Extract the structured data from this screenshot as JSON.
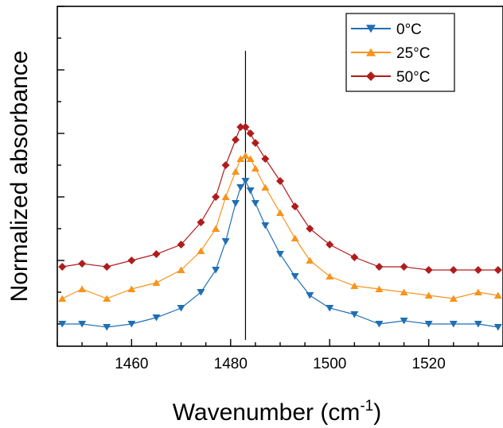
{
  "chart_data": {
    "type": "line",
    "xlabel_main": "Wavenumber (cm",
    "xlabel_sup": "-1",
    "xlabel_end": ")",
    "ylabel": "Normalized absorbance",
    "xlim": [
      1445,
      1535
    ],
    "ylim": [
      -0.07,
      1.0
    ],
    "x_ticks": [
      1460,
      1480,
      1500,
      1520
    ],
    "y_ticks_major": [
      0,
      0.2,
      0.4,
      0.6,
      0.8,
      1.0
    ],
    "grid": false,
    "legend_position": "top-right",
    "reference_line": {
      "x": 1483,
      "y_range": [
        -0.05,
        0.86
      ]
    },
    "series": [
      {
        "name": "0°C",
        "color": "#1f6fb4",
        "marker": "triangle-down",
        "x": [
          1446,
          1450,
          1455,
          1460,
          1465,
          1470,
          1474,
          1477,
          1479,
          1481,
          1482,
          1483,
          1484,
          1485,
          1487,
          1490,
          1493,
          1496,
          1500,
          1505,
          1510,
          1515,
          1520,
          1525,
          1530,
          1534
        ],
        "y": [
          0.0,
          0.0,
          -0.01,
          0.0,
          0.02,
          0.05,
          0.1,
          0.17,
          0.26,
          0.38,
          0.43,
          0.45,
          0.42,
          0.38,
          0.31,
          0.22,
          0.15,
          0.09,
          0.05,
          0.03,
          0.0,
          0.01,
          0.0,
          0.0,
          0.0,
          -0.01
        ]
      },
      {
        "name": "25°C",
        "color": "#f7941d",
        "marker": "triangle-up",
        "x": [
          1446,
          1450,
          1455,
          1460,
          1465,
          1470,
          1474,
          1477,
          1479,
          1481,
          1482,
          1483,
          1484,
          1485,
          1487,
          1490,
          1493,
          1496,
          1500,
          1505,
          1510,
          1515,
          1520,
          1525,
          1530,
          1534
        ],
        "y": [
          0.08,
          0.11,
          0.08,
          0.11,
          0.13,
          0.17,
          0.23,
          0.3,
          0.4,
          0.48,
          0.52,
          0.53,
          0.52,
          0.49,
          0.43,
          0.35,
          0.27,
          0.2,
          0.15,
          0.12,
          0.11,
          0.1,
          0.09,
          0.08,
          0.1,
          0.09
        ]
      },
      {
        "name": "50°C",
        "color": "#b01c1c",
        "marker": "diamond",
        "x": [
          1446,
          1450,
          1455,
          1460,
          1465,
          1470,
          1474,
          1477,
          1479,
          1481,
          1482,
          1483,
          1484,
          1485,
          1487,
          1490,
          1493,
          1496,
          1500,
          1505,
          1510,
          1515,
          1520,
          1525,
          1530,
          1534
        ],
        "y": [
          0.18,
          0.19,
          0.18,
          0.2,
          0.22,
          0.25,
          0.32,
          0.4,
          0.5,
          0.58,
          0.62,
          0.62,
          0.6,
          0.57,
          0.52,
          0.45,
          0.37,
          0.3,
          0.25,
          0.21,
          0.18,
          0.18,
          0.17,
          0.17,
          0.17,
          0.17
        ]
      }
    ]
  }
}
